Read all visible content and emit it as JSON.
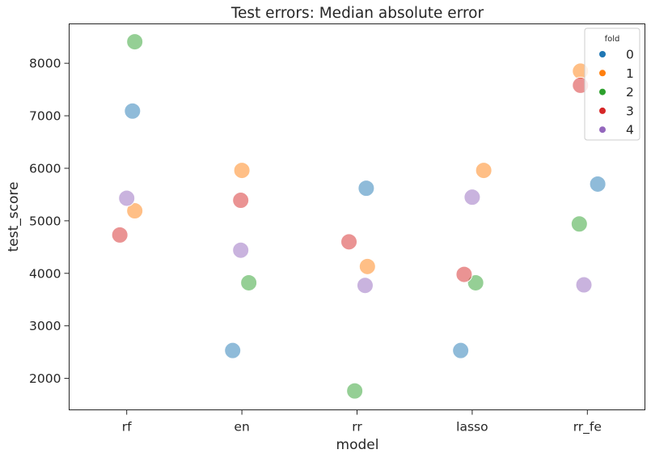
{
  "chart_data": {
    "type": "scatter",
    "title": "Test errors: Median absolute error",
    "xlabel": "model",
    "ylabel": "test_score",
    "categories": [
      "rf",
      "en",
      "rr",
      "lasso",
      "rr_fe"
    ],
    "ylim": [
      1400,
      8750
    ],
    "yticks": [
      2000,
      3000,
      4000,
      5000,
      6000,
      7000,
      8000
    ],
    "grid": false,
    "legend": {
      "title": "fold",
      "placement": "top-right"
    },
    "series": [
      {
        "name": "0",
        "color": "#1f77b4",
        "points": [
          {
            "x": "rf",
            "y": 7090,
            "jitter": 0.05
          },
          {
            "x": "en",
            "y": 2530,
            "jitter": -0.08
          },
          {
            "x": "rr",
            "y": 5620,
            "jitter": 0.08
          },
          {
            "x": "lasso",
            "y": 2530,
            "jitter": -0.1
          },
          {
            "x": "rr_fe",
            "y": 5700,
            "jitter": 0.09
          }
        ]
      },
      {
        "name": "1",
        "color": "#ff7f0e",
        "points": [
          {
            "x": "rf",
            "y": 5190,
            "jitter": 0.07
          },
          {
            "x": "en",
            "y": 5960,
            "jitter": 0.0
          },
          {
            "x": "rr",
            "y": 4130,
            "jitter": 0.09
          },
          {
            "x": "lasso",
            "y": 5960,
            "jitter": 0.1
          },
          {
            "x": "rr_fe",
            "y": 7850,
            "jitter": -0.06
          }
        ]
      },
      {
        "name": "2",
        "color": "#2ca02c",
        "points": [
          {
            "x": "rf",
            "y": 8410,
            "jitter": 0.07
          },
          {
            "x": "en",
            "y": 3820,
            "jitter": 0.06
          },
          {
            "x": "rr",
            "y": 1760,
            "jitter": -0.02
          },
          {
            "x": "lasso",
            "y": 3820,
            "jitter": 0.03
          },
          {
            "x": "rr_fe",
            "y": 4940,
            "jitter": -0.07
          }
        ]
      },
      {
        "name": "3",
        "color": "#d62728",
        "points": [
          {
            "x": "rf",
            "y": 4730,
            "jitter": -0.06
          },
          {
            "x": "en",
            "y": 5390,
            "jitter": -0.01
          },
          {
            "x": "rr",
            "y": 4600,
            "jitter": -0.07
          },
          {
            "x": "lasso",
            "y": 3980,
            "jitter": -0.07
          },
          {
            "x": "rr_fe",
            "y": 7580,
            "jitter": -0.06
          }
        ]
      },
      {
        "name": "4",
        "color": "#9467bd",
        "points": [
          {
            "x": "rf",
            "y": 5430,
            "jitter": 0.0
          },
          {
            "x": "en",
            "y": 4440,
            "jitter": -0.01
          },
          {
            "x": "rr",
            "y": 3770,
            "jitter": 0.07
          },
          {
            "x": "lasso",
            "y": 5450,
            "jitter": 0.0
          },
          {
            "x": "rr_fe",
            "y": 3780,
            "jitter": -0.03
          }
        ]
      }
    ]
  }
}
